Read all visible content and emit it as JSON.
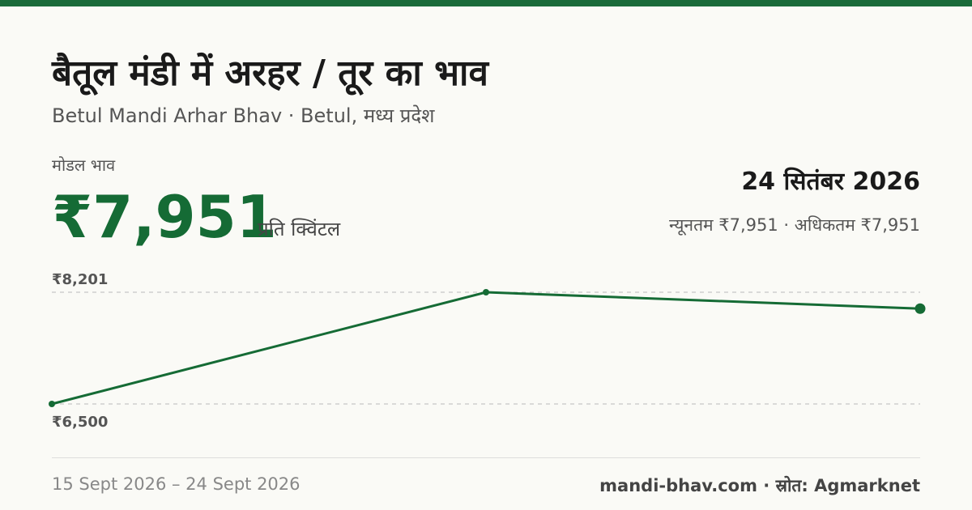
{
  "header": {
    "title": "बैतूल मंडी में अरहर / तूर का भाव",
    "subtitle": "Betul Mandi Arhar Bhav · Betul, मध्य प्रदेश"
  },
  "price": {
    "label": "मोडल भाव",
    "value": "₹7,951",
    "unit": "प्रति क्विंटल",
    "date": "24 सितंबर 2026",
    "range": "न्यूनतम ₹7,951 · अधिकतम ₹7,951"
  },
  "chart_data": {
    "type": "line",
    "categories": [
      null,
      null,
      null
    ],
    "color": "#156b35",
    "series": [
      {
        "name": null,
        "color": "#156b35",
        "values": [
          6500,
          8201,
          7951
        ]
      }
    ],
    "ylim": [
      6500,
      8201
    ],
    "yticks": [
      {
        "value": 8201,
        "label": "₹8,201"
      },
      {
        "value": 6500,
        "label": "₹6,500"
      }
    ],
    "grid": true
  },
  "footer": {
    "date_range": "15 Sept 2026 – 24 Sept 2026",
    "source": "mandi-bhav.com · स्रोत: Agmarknet"
  }
}
